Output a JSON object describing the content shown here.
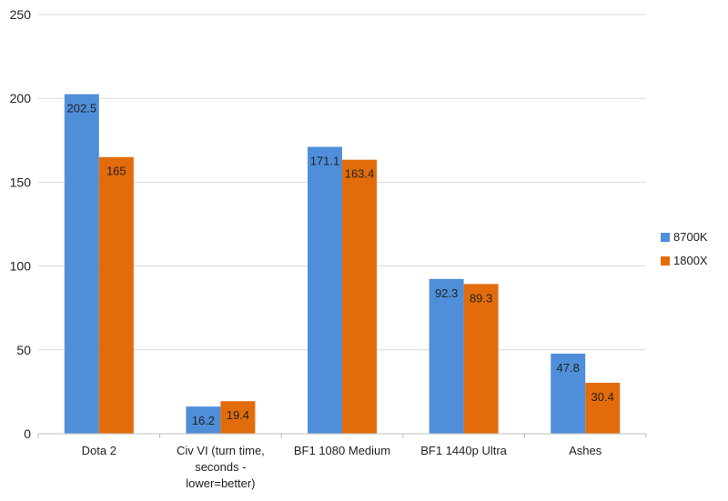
{
  "chart_data": {
    "type": "bar",
    "categories": [
      "Dota 2",
      "Civ VI (turn time, seconds - lower=better)",
      "BF1 1080 Medium",
      "BF1 1440p Ultra",
      "Ashes"
    ],
    "category_lines": [
      [
        "Dota 2"
      ],
      [
        "Civ VI (turn time,",
        "seconds -",
        "lower=better)"
      ],
      [
        "BF1 1080 Medium"
      ],
      [
        "BF1 1440p Ultra"
      ],
      [
        "Ashes"
      ]
    ],
    "series": [
      {
        "name": "8700K",
        "values": [
          202.5,
          16.2,
          171.1,
          92.3,
          47.8
        ],
        "labels": [
          "202.5",
          "16.2",
          "171.1",
          "92.3",
          "47.8"
        ],
        "color": "#4F8FDA"
      },
      {
        "name": "1800X",
        "values": [
          165,
          19.4,
          163.4,
          89.3,
          30.4
        ],
        "labels": [
          "165",
          "19.4",
          "163.4",
          "89.3",
          "30.4"
        ],
        "color": "#E36C0A"
      }
    ],
    "ylim": [
      0,
      250
    ],
    "yticks": [
      "0",
      "50",
      "100",
      "150",
      "200",
      "250"
    ],
    "grid": true,
    "legend_position": "right",
    "title": "",
    "xlabel": "",
    "ylabel": ""
  }
}
